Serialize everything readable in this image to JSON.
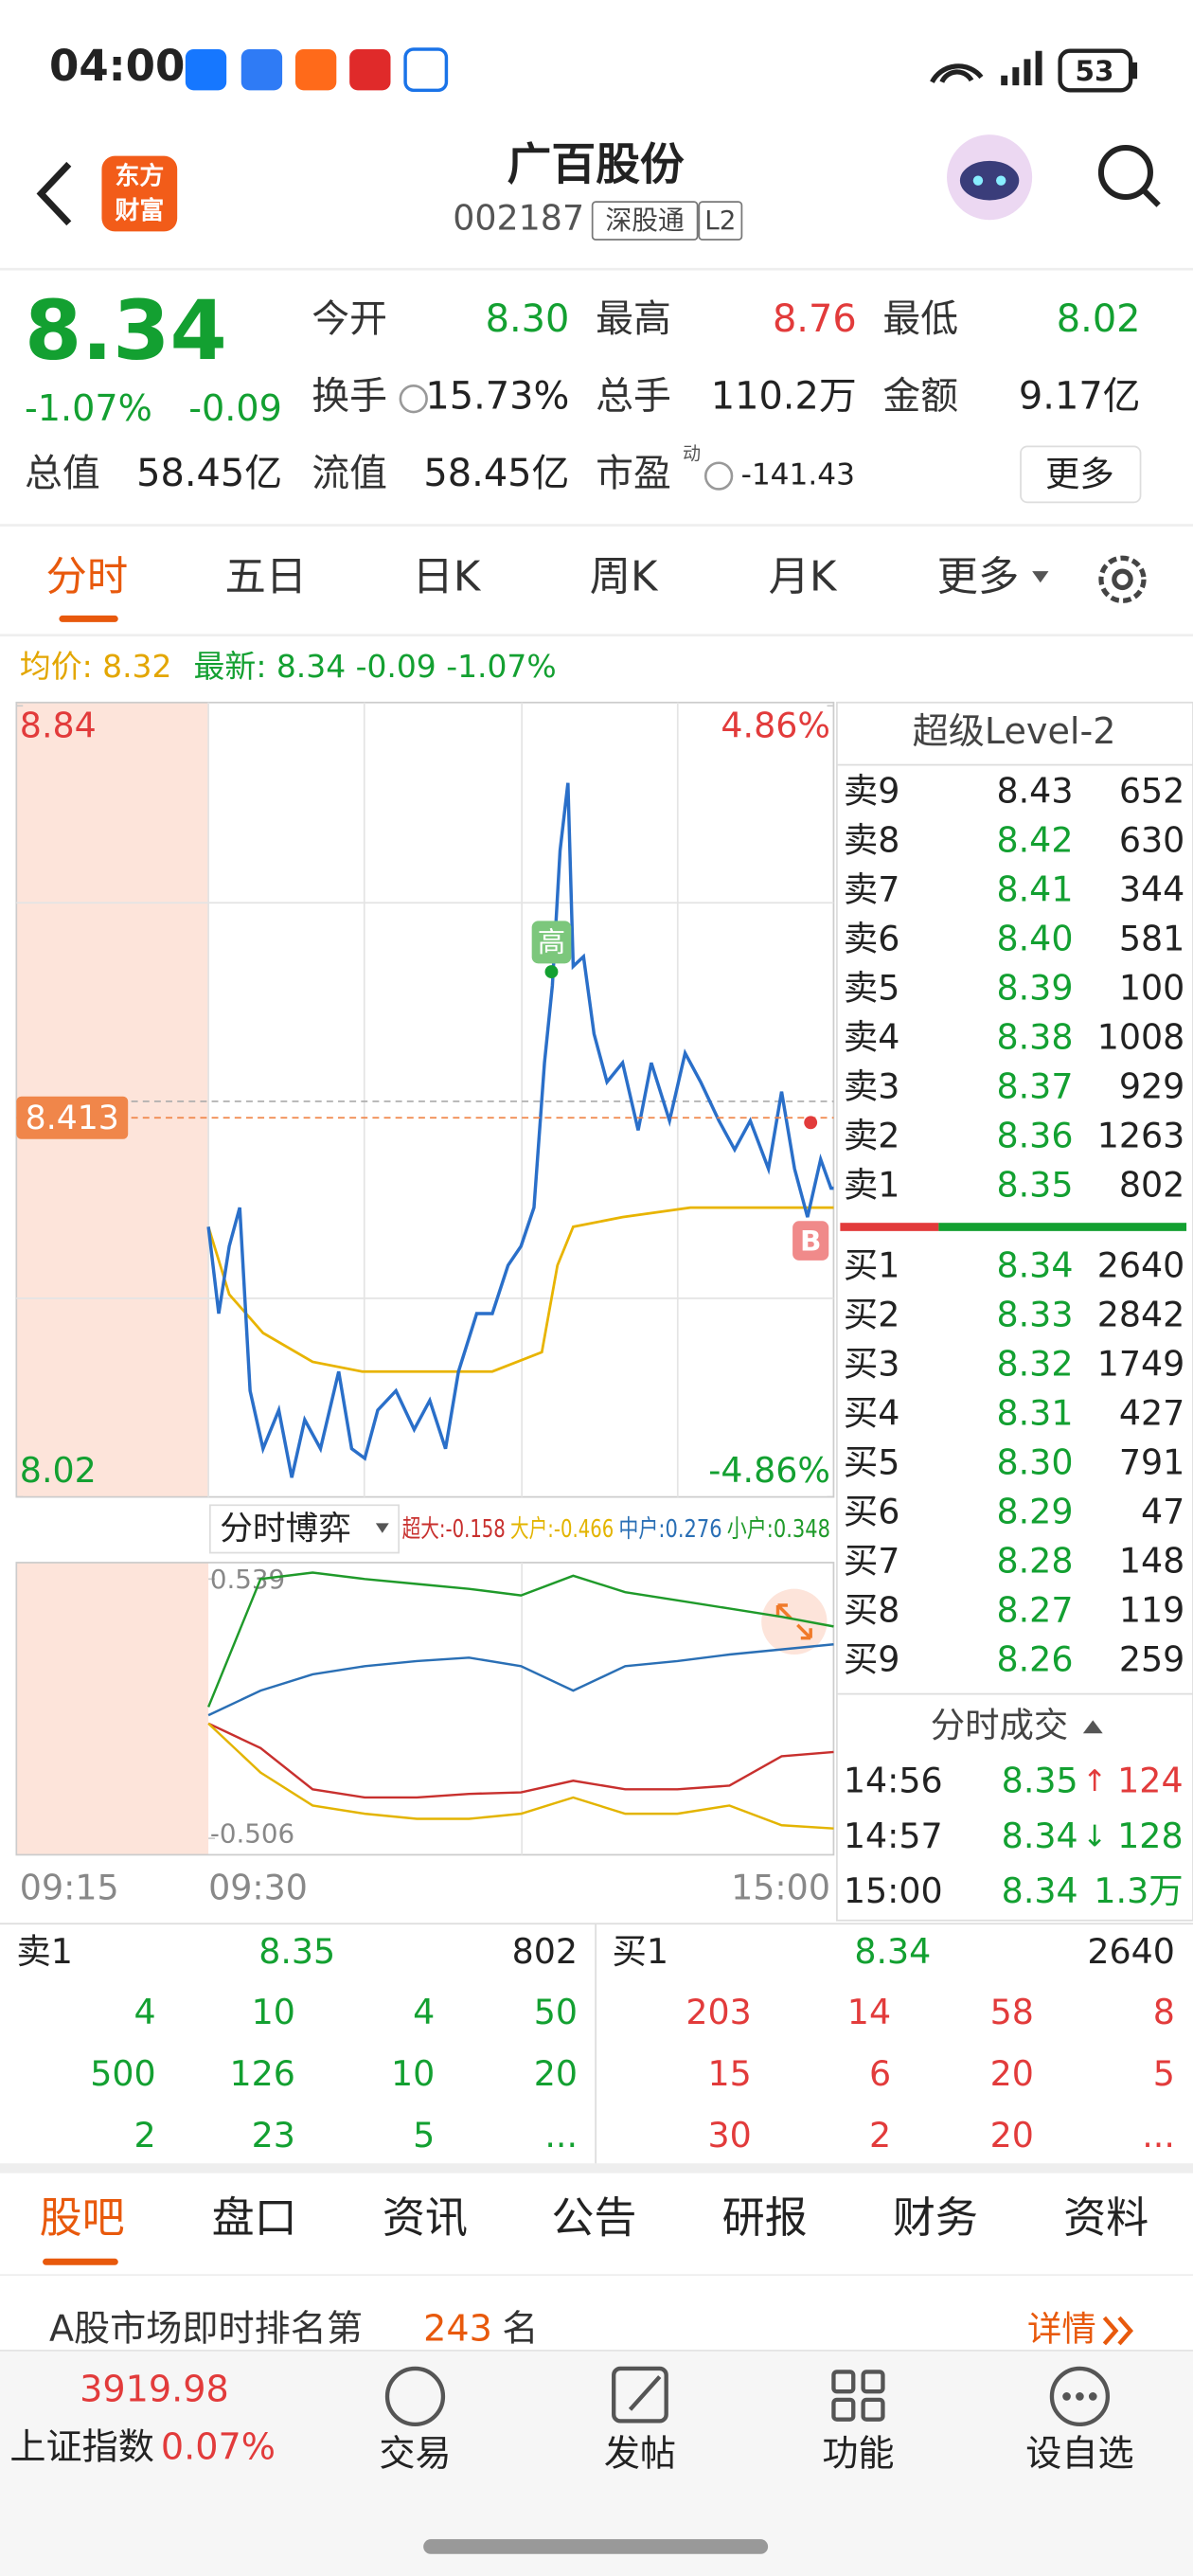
{
  "status_bar": {
    "time": "04:00",
    "battery": "53"
  },
  "header": {
    "logo": [
      "东方",
      "财富"
    ],
    "title": "广百股份",
    "code": "002187",
    "tags": [
      "深股通",
      "L2"
    ]
  },
  "quote": {
    "price": "8.34",
    "change_pct": "-1.07%",
    "change": "-0.09",
    "stats": [
      {
        "label": "今开",
        "value": "8.30",
        "color": "#13a031"
      },
      {
        "label": "最高",
        "value": "8.76",
        "color": "#e23b3b"
      },
      {
        "label": "最低",
        "value": "8.02",
        "color": "#13a031"
      },
      {
        "label": "换手",
        "value": "15.73%"
      },
      {
        "label": "总手",
        "value": "110.2万"
      },
      {
        "label": "金额",
        "value": "9.17亿"
      },
      {
        "label": "总值",
        "value": "58.45亿"
      },
      {
        "label": "流值",
        "value": "58.45亿"
      },
      {
        "label": "市盈",
        "sup": "动",
        "value": "-141.43"
      }
    ],
    "more": "更多"
  },
  "tabs": [
    "分时",
    "五日",
    "日K",
    "周K",
    "月K",
    "更多"
  ],
  "chart_data": [
    {
      "type": "line",
      "xlim": [
        0,
        240
      ],
      "ylim": [
        8.02,
        8.84
      ],
      "yticks": [
        8.02,
        8.84
      ],
      "y2lim": [
        -4.86,
        4.86
      ],
      "y2ticks": [
        {
          "value": -4.86,
          "label": "-4.86%"
        },
        {
          "value": 4.86,
          "label": "4.86%"
        }
      ],
      "cursor": 8.413,
      "high_marker": "高",
      "buy_marker": "B",
      "series": [
        {
          "legend": "最新: 8.34 -0.09 -1.07%",
          "color": "#2a6fc9",
          "x": [
            0,
            4,
            8,
            12,
            16,
            21,
            27,
            32,
            37,
            43,
            50,
            55,
            60,
            65,
            72,
            79,
            85,
            91,
            96,
            103,
            109,
            115,
            120,
            125,
            129,
            132,
            135,
            138,
            140,
            144,
            148,
            153,
            159,
            165,
            170,
            177,
            183,
            189,
            196,
            202,
            208,
            215,
            220,
            225,
            230,
            235,
            239,
            240
          ],
          "values": [
            8.3,
            8.21,
            8.28,
            8.32,
            8.13,
            8.07,
            8.11,
            8.04,
            8.1,
            8.07,
            8.15,
            8.07,
            8.06,
            8.11,
            8.13,
            8.09,
            8.12,
            8.07,
            8.15,
            8.21,
            8.21,
            8.26,
            8.28,
            8.32,
            8.47,
            8.55,
            8.69,
            8.76,
            8.57,
            8.58,
            8.5,
            8.45,
            8.47,
            8.4,
            8.47,
            8.41,
            8.48,
            8.45,
            8.41,
            8.38,
            8.41,
            8.36,
            8.44,
            8.36,
            8.31,
            8.37,
            8.34,
            8.34
          ]
        },
        {
          "legend": "均价: 8.32",
          "color": "#e8b400",
          "x": [
            0,
            8,
            21,
            40,
            59,
            84,
            109,
            128,
            134,
            140,
            159,
            185,
            210,
            240
          ],
          "values": [
            8.3,
            8.23,
            8.19,
            8.16,
            8.15,
            8.15,
            8.15,
            8.17,
            8.26,
            8.3,
            8.31,
            8.32,
            8.32,
            8.32
          ]
        }
      ]
    },
    {
      "type": "line",
      "title": "分时博弈",
      "xlim": [
        0,
        240
      ],
      "ylim": [
        -0.506,
        0.539
      ],
      "yticks": [
        -0.506,
        0.539
      ],
      "time_labels": [
        "09:15",
        "09:30",
        "15:00"
      ],
      "x": [
        0,
        20,
        40,
        60,
        80,
        100,
        120,
        140,
        160,
        180,
        200,
        220,
        240
      ],
      "series": [
        {
          "name": "超大",
          "legend": "超大:-0.158",
          "color": "#c8302e",
          "values": [
            -0.043,
            -0.142,
            -0.308,
            -0.341,
            -0.341,
            -0.327,
            -0.321,
            -0.274,
            -0.308,
            -0.308,
            -0.294,
            -0.175,
            -0.158
          ]
        },
        {
          "name": "大户",
          "legend": "大户:-0.466",
          "color": "#e3b400",
          "values": [
            -0.043,
            -0.241,
            -0.374,
            -0.407,
            -0.427,
            -0.427,
            -0.407,
            -0.341,
            -0.407,
            -0.407,
            -0.374,
            -0.453,
            -0.466
          ]
        },
        {
          "name": "中户",
          "legend": "中户:0.276",
          "color": "#2a6fb5",
          "values": [
            -0.01,
            0.089,
            0.155,
            0.188,
            0.208,
            0.222,
            0.188,
            0.089,
            0.188,
            0.208,
            0.235,
            0.255,
            0.276
          ]
        },
        {
          "name": "小户",
          "legend": "小户:0.348",
          "color": "#1f9a2a",
          "values": [
            0.023,
            0.539,
            0.565,
            0.539,
            0.519,
            0.499,
            0.473,
            0.552,
            0.486,
            0.453,
            0.42,
            0.387,
            0.348
          ]
        }
      ]
    }
  ],
  "order_book": {
    "title": "超级Level-2",
    "asks": [
      {
        "label": "卖9",
        "price": "8.43",
        "volume": "652",
        "color": "#222"
      },
      {
        "label": "卖8",
        "price": "8.42",
        "volume": "630",
        "color": "#13a031"
      },
      {
        "label": "卖7",
        "price": "8.41",
        "volume": "344",
        "color": "#13a031"
      },
      {
        "label": "卖6",
        "price": "8.40",
        "volume": "581",
        "color": "#13a031"
      },
      {
        "label": "卖5",
        "price": "8.39",
        "volume": "100",
        "color": "#13a031"
      },
      {
        "label": "卖4",
        "price": "8.38",
        "volume": "1008",
        "color": "#13a031"
      },
      {
        "label": "卖3",
        "price": "8.37",
        "volume": "929",
        "color": "#13a031"
      },
      {
        "label": "卖2",
        "price": "8.36",
        "volume": "1263",
        "color": "#13a031"
      },
      {
        "label": "卖1",
        "price": "8.35",
        "volume": "802",
        "color": "#13a031"
      }
    ],
    "bids": [
      {
        "label": "买1",
        "price": "8.34",
        "volume": "2640",
        "color": "#13a031"
      },
      {
        "label": "买2",
        "price": "8.33",
        "volume": "2842",
        "color": "#13a031"
      },
      {
        "label": "买3",
        "price": "8.32",
        "volume": "1749",
        "color": "#13a031"
      },
      {
        "label": "买4",
        "price": "8.31",
        "volume": "427",
        "color": "#13a031"
      },
      {
        "label": "买5",
        "price": "8.30",
        "volume": "791",
        "color": "#13a031"
      },
      {
        "label": "买6",
        "price": "8.29",
        "volume": "47",
        "color": "#13a031"
      },
      {
        "label": "买7",
        "price": "8.28",
        "volume": "148",
        "color": "#13a031"
      },
      {
        "label": "买8",
        "price": "8.27",
        "volume": "119",
        "color": "#13a031"
      },
      {
        "label": "买9",
        "price": "8.26",
        "volume": "259",
        "color": "#13a031"
      }
    ]
  },
  "trades": {
    "title": "分时成交",
    "rows": [
      {
        "time": "14:56",
        "price": "8.35",
        "arrow": "↑",
        "volume": "124",
        "color": "#e23b3b"
      },
      {
        "time": "14:57",
        "price": "8.34",
        "arrow": "↓",
        "volume": "128",
        "color": "#13a031"
      },
      {
        "time": "15:00",
        "price": "8.34",
        "arrow": "",
        "volume": "1.3万",
        "color": "#13a031"
      }
    ]
  },
  "queues": [
    {
      "label": "卖1",
      "price": "8.35",
      "volume": "802",
      "color": "#13a031",
      "rows": [
        [
          "4",
          "10",
          "4",
          "50"
        ],
        [
          "500",
          "126",
          "10",
          "20"
        ],
        [
          "2",
          "23",
          "5",
          "..."
        ]
      ]
    },
    {
      "label": "买1",
      "price": "8.34",
      "volume": "2640",
      "color": "#e23b3b",
      "rows": [
        [
          "203",
          "14",
          "58",
          "8"
        ],
        [
          "15",
          "6",
          "20",
          "5"
        ],
        [
          "30",
          "2",
          "20",
          "..."
        ]
      ]
    }
  ],
  "bottom_tabs": [
    "股吧",
    "盘口",
    "资讯",
    "公告",
    "研报",
    "财务",
    "资料"
  ],
  "banner": {
    "text": "A股市场即时排名第",
    "rank": "243",
    "suffix": "名",
    "link": "详情"
  },
  "bottom_nav": {
    "index_value": "3919.98",
    "index_name": "上证指数",
    "index_change": "0.07%",
    "items": [
      "交易",
      "发帖",
      "功能",
      "设自选"
    ]
  }
}
